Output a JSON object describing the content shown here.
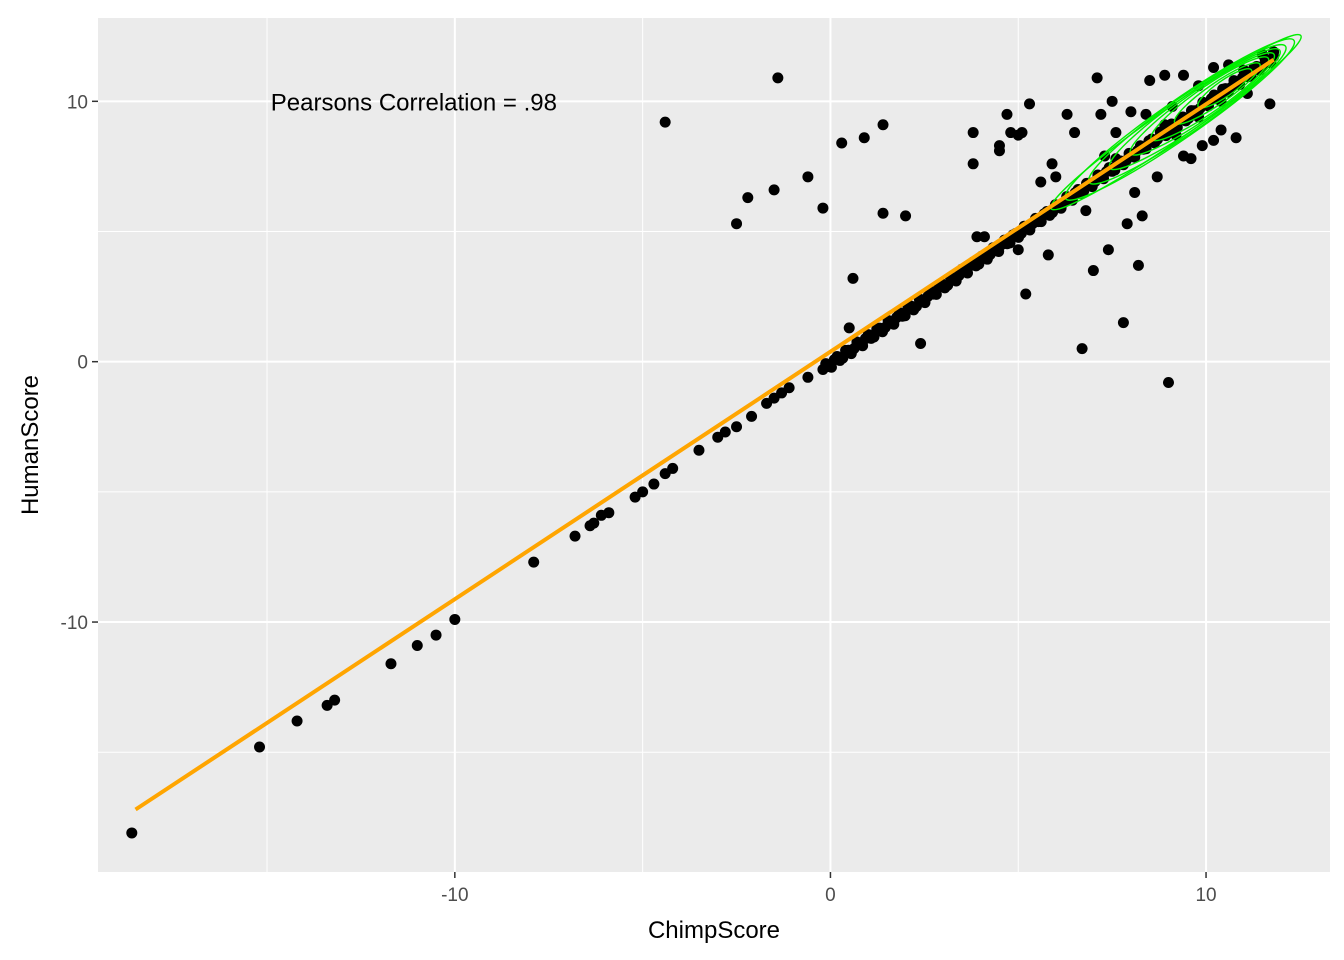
{
  "chart_data": {
    "type": "scatter",
    "title": "",
    "xlabel": "ChimpScore",
    "ylabel": "HumanScore",
    "xlim": [
      -19.5,
      13.3
    ],
    "ylim": [
      -19.6,
      13.2
    ],
    "x_ticks": [
      -10,
      0,
      10
    ],
    "x_tick_labels": [
      "-10",
      "0",
      "10"
    ],
    "y_ticks": [
      -10,
      0,
      10
    ],
    "y_tick_labels": [
      "-10",
      "0",
      "10"
    ],
    "grid": true,
    "legend": "none",
    "annotation": {
      "text": "Pearsons Correlation = .98",
      "x": -14.9,
      "y": 10.0
    },
    "colors": {
      "panel": "#ebebeb",
      "grid": "#ffffff",
      "points": "#000000",
      "fit_line": "#ffa500",
      "density_contours": "#00ee00"
    },
    "fit_line": {
      "x": [
        -18.5,
        11.8
      ],
      "y": [
        -17.2,
        11.6
      ]
    },
    "dense_band": {
      "x_from": -0.2,
      "x_to": 11.8,
      "y_from": -0.3,
      "y_to": 11.7,
      "count": 160,
      "spread": 0.15
    },
    "points": [
      [
        -18.6,
        -18.1
      ],
      [
        -15.2,
        -14.8
      ],
      [
        -14.2,
        -13.8
      ],
      [
        -13.4,
        -13.2
      ],
      [
        -13.2,
        -13.0
      ],
      [
        -11.7,
        -11.6
      ],
      [
        -11.0,
        -10.9
      ],
      [
        -10.5,
        -10.5
      ],
      [
        -10.0,
        -9.9
      ],
      [
        -7.9,
        -7.7
      ],
      [
        -6.8,
        -6.7
      ],
      [
        -6.4,
        -6.3
      ],
      [
        -6.3,
        -6.2
      ],
      [
        -6.1,
        -5.9
      ],
      [
        -5.9,
        -5.8
      ],
      [
        -5.2,
        -5.2
      ],
      [
        -5.0,
        -5.0
      ],
      [
        -4.7,
        -4.7
      ],
      [
        -4.4,
        -4.3
      ],
      [
        -4.2,
        -4.1
      ],
      [
        -3.5,
        -3.4
      ],
      [
        -3.0,
        -2.9
      ],
      [
        -2.8,
        -2.7
      ],
      [
        -2.5,
        -2.5
      ],
      [
        -2.1,
        -2.1
      ],
      [
        -1.7,
        -1.6
      ],
      [
        -1.5,
        -1.4
      ],
      [
        -1.3,
        -1.2
      ],
      [
        -1.1,
        -1.0
      ],
      [
        -0.6,
        -0.6
      ],
      [
        -4.4,
        9.2
      ],
      [
        -1.4,
        10.9
      ],
      [
        -1.5,
        6.6
      ],
      [
        -2.2,
        6.3
      ],
      [
        -2.5,
        5.3
      ],
      [
        -0.6,
        7.1
      ],
      [
        -0.2,
        5.9
      ],
      [
        0.3,
        8.4
      ],
      [
        0.9,
        8.6
      ],
      [
        1.4,
        9.1
      ],
      [
        1.4,
        5.7
      ],
      [
        2.0,
        5.6
      ],
      [
        0.6,
        3.2
      ],
      [
        0.5,
        1.3
      ],
      [
        2.4,
        0.7
      ],
      [
        3.8,
        8.8
      ],
      [
        3.8,
        7.6
      ],
      [
        3.9,
        4.8
      ],
      [
        4.1,
        4.8
      ],
      [
        4.5,
        8.3
      ],
      [
        4.5,
        8.1
      ],
      [
        4.7,
        9.5
      ],
      [
        4.8,
        8.8
      ],
      [
        5.0,
        8.7
      ],
      [
        5.0,
        4.3
      ],
      [
        5.1,
        8.8
      ],
      [
        5.3,
        9.9
      ],
      [
        5.2,
        2.6
      ],
      [
        5.6,
        6.9
      ],
      [
        5.8,
        4.1
      ],
      [
        5.9,
        7.6
      ],
      [
        6.0,
        7.1
      ],
      [
        6.3,
        9.5
      ],
      [
        6.5,
        8.8
      ],
      [
        6.7,
        0.5
      ],
      [
        6.8,
        5.8
      ],
      [
        7.0,
        3.5
      ],
      [
        7.1,
        10.9
      ],
      [
        7.2,
        9.5
      ],
      [
        7.4,
        4.3
      ],
      [
        7.5,
        10.0
      ],
      [
        7.6,
        8.8
      ],
      [
        7.8,
        1.5
      ],
      [
        7.9,
        5.3
      ],
      [
        8.1,
        6.5
      ],
      [
        8.2,
        3.7
      ],
      [
        8.3,
        5.6
      ],
      [
        8.5,
        10.8
      ],
      [
        8.7,
        7.1
      ],
      [
        9.0,
        -0.8
      ],
      [
        9.2,
        8.7
      ],
      [
        9.4,
        7.9
      ],
      [
        9.6,
        7.8
      ],
      [
        9.9,
        8.3
      ],
      [
        10.2,
        8.5
      ],
      [
        10.4,
        8.9
      ],
      [
        10.8,
        8.6
      ],
      [
        11.1,
        10.3
      ],
      [
        11.5,
        11.8
      ],
      [
        11.7,
        9.9
      ],
      [
        11.8,
        11.9
      ],
      [
        10.2,
        11.3
      ],
      [
        9.4,
        11.0
      ],
      [
        8.9,
        11.0
      ],
      [
        9.8,
        10.6
      ],
      [
        10.6,
        11.4
      ],
      [
        11.0,
        11.2
      ],
      [
        7.6,
        7.8
      ],
      [
        7.3,
        7.9
      ],
      [
        8.0,
        9.6
      ],
      [
        8.4,
        9.5
      ],
      [
        8.9,
        9.1
      ],
      [
        9.1,
        9.8
      ],
      [
        9.8,
        9.4
      ],
      [
        10.4,
        10.0
      ]
    ],
    "density_contours": [
      {
        "cx": 9.2,
        "cy": 9.2,
        "rx": 4.7,
        "ry": 0.5
      },
      {
        "cx": 9.3,
        "cy": 9.3,
        "rx": 4.3,
        "ry": 0.58
      },
      {
        "cx": 9.5,
        "cy": 9.5,
        "rx": 3.7,
        "ry": 0.55
      },
      {
        "cx": 9.7,
        "cy": 9.7,
        "rx": 3.2,
        "ry": 0.5
      },
      {
        "cx": 9.9,
        "cy": 9.9,
        "rx": 2.7,
        "ry": 0.45
      },
      {
        "cx": 10.1,
        "cy": 10.1,
        "rx": 2.2,
        "ry": 0.4
      },
      {
        "cx": 10.3,
        "cy": 10.3,
        "rx": 1.6,
        "ry": 0.32
      },
      {
        "cx": 10.5,
        "cy": 10.5,
        "rx": 1.0,
        "ry": 0.25
      }
    ]
  }
}
